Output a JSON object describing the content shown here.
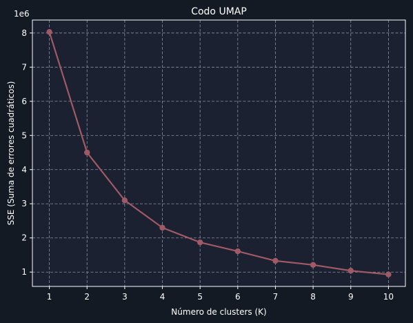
{
  "colors": {
    "page_background": "#131a24",
    "plot_background": "#1b2130",
    "grid": "#8a93a3",
    "axis": "#ffffff",
    "line": "#a05a66",
    "text": "#ffffff"
  },
  "chart_data": {
    "type": "line",
    "title": "Codo UMAP",
    "xlabel": "Número de clusters (K)",
    "ylabel": "SSE (Suma de errores cuadráticos)",
    "y_offset_label": "1e6",
    "x": [
      1,
      2,
      3,
      4,
      5,
      6,
      7,
      8,
      9,
      10
    ],
    "y": [
      8030000,
      4500000,
      3100000,
      2300000,
      1870000,
      1610000,
      1330000,
      1210000,
      1040000,
      930000
    ],
    "x_ticks": [
      1,
      2,
      3,
      4,
      5,
      6,
      7,
      8,
      9,
      10
    ],
    "x_tick_labels": [
      "1",
      "2",
      "3",
      "4",
      "5",
      "6",
      "7",
      "8",
      "9",
      "10"
    ],
    "y_ticks": [
      1000000,
      2000000,
      3000000,
      4000000,
      5000000,
      6000000,
      7000000,
      8000000
    ],
    "y_tick_labels": [
      "1",
      "2",
      "3",
      "4",
      "5",
      "6",
      "7",
      "8"
    ],
    "xlim": [
      0.55,
      10.45
    ],
    "ylim": [
      580000,
      8380000
    ],
    "grid": true,
    "grid_style": "dashed",
    "marker": "circle"
  }
}
